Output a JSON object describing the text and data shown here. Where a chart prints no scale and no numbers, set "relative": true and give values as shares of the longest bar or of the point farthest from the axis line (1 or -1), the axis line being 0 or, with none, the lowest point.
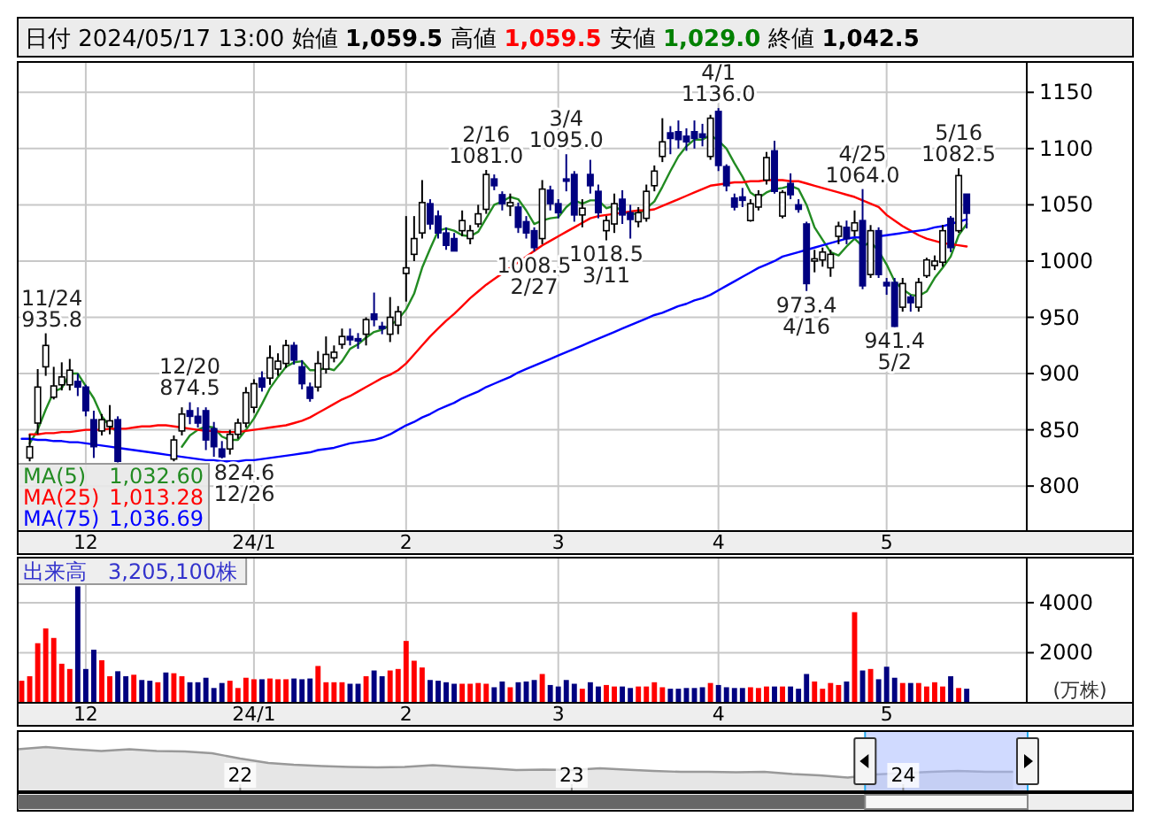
{
  "chart_data": [
    {
      "type": "candlestick",
      "title": "日付 2024/05/17 13:00 始値 1,059.5 高値 1,059.5 安値 1,029.0 終値 1,042.5",
      "categories": [
        null,
        null,
        null,
        null,
        null,
        null,
        null,
        null,
        "12",
        null,
        null,
        null,
        null,
        null,
        null,
        null,
        null,
        null,
        null,
        null,
        null,
        null,
        null,
        null,
        null,
        null,
        null,
        null,
        null,
        "24/1",
        null,
        null,
        null,
        null,
        null,
        null,
        null,
        null,
        null,
        null,
        null,
        null,
        null,
        null,
        null,
        null,
        null,
        null,
        "2",
        null,
        null,
        null,
        null,
        null,
        null,
        null,
        null,
        null,
        null,
        null,
        null,
        null,
        null,
        null,
        null,
        null,
        null,
        "3",
        null,
        null,
        null,
        null,
        null,
        null,
        null,
        null,
        null,
        null,
        null,
        null,
        null,
        null,
        null,
        null,
        null,
        null,
        null,
        "4",
        null,
        null,
        null,
        null,
        null,
        null,
        null,
        null,
        null,
        null,
        null,
        null,
        null,
        null,
        null,
        null,
        null,
        null,
        null,
        null,
        "5",
        null,
        null,
        null,
        null,
        null,
        null,
        null,
        null,
        null,
        null
      ],
      "ohlc": [
        null,
        [
          825,
          846,
          822,
          835
        ],
        [
          856,
          904,
          846,
          888
        ],
        [
          906,
          935.8,
          898,
          925
        ],
        [
          879,
          906,
          877,
          889
        ],
        [
          890,
          910,
          885,
          897
        ],
        [
          890,
          913,
          885,
          903
        ],
        [
          893,
          900,
          880,
          888
        ],
        [
          888,
          890,
          862,
          867
        ],
        [
          859,
          867,
          825,
          835
        ],
        [
          849,
          864,
          845,
          859
        ],
        [
          853,
          872,
          846,
          858
        ],
        [
          859,
          862,
          821,
          822
        ],
        null,
        null,
        null,
        null,
        null,
        null,
        [
          824,
          845,
          822,
          841
        ],
        [
          849,
          870,
          845,
          864
        ],
        [
          867,
          874.5,
          855,
          862
        ],
        [
          862,
          870,
          852,
          856
        ],
        [
          867,
          870,
          832,
          841
        ],
        [
          851,
          857,
          826,
          835
        ],
        [
          833,
          840,
          824.6,
          826
        ],
        [
          833,
          850,
          828,
          846
        ],
        [
          846,
          860,
          842,
          856
        ],
        [
          856,
          888,
          852,
          883
        ],
        [
          870,
          895,
          865,
          891
        ],
        [
          896,
          902,
          884,
          888
        ],
        [
          896,
          925,
          890,
          914
        ],
        [
          904,
          918,
          898,
          911
        ],
        [
          909,
          930,
          905,
          925
        ],
        [
          925,
          928,
          908,
          912
        ],
        [
          906,
          912,
          886,
          891
        ],
        [
          888,
          892,
          875,
          878
        ],
        [
          888,
          920,
          884,
          909
        ],
        [
          904,
          933,
          900,
          917
        ],
        [
          914,
          925,
          910,
          919
        ],
        [
          926,
          940,
          922,
          933
        ],
        [
          933,
          940,
          925,
          930
        ],
        [
          931,
          936,
          922,
          929
        ],
        [
          935,
          950,
          925,
          948
        ],
        [
          953,
          972,
          942,
          948
        ],
        [
          942,
          946,
          935,
          940
        ],
        [
          935,
          968,
          928,
          950
        ],
        [
          943,
          960,
          935,
          955
        ],
        [
          989,
          1040,
          964,
          994
        ],
        [
          1006,
          1040,
          1000,
          1020
        ],
        [
          1025,
          1072,
          1020,
          1052
        ],
        [
          1051,
          1055,
          1028,
          1033
        ],
        [
          1040,
          1045,
          1020,
          1025
        ],
        [
          1025,
          1030,
          1010,
          1014
        ],
        [
          1020,
          1025,
          1009,
          1009
        ],
        [
          1027,
          1045,
          1022,
          1036
        ],
        [
          1020,
          1032,
          1015,
          1027
        ],
        [
          1033,
          1050,
          1030,
          1042
        ],
        [
          1046,
          1081.0,
          1042,
          1077
        ],
        [
          1073,
          1077,
          1063,
          1067
        ],
        [
          1059,
          1062,
          1045,
          1051
        ],
        [
          1049,
          1060,
          1040,
          1052
        ],
        [
          1048,
          1052,
          1025,
          1030
        ],
        [
          1035,
          1040,
          1020,
          1025
        ],
        [
          1027,
          1030,
          1008.5,
          1012
        ],
        [
          1020,
          1072,
          1015,
          1064
        ],
        [
          1063,
          1067,
          1045,
          1051
        ],
        [
          1051,
          1055,
          1038,
          1043
        ],
        [
          1073,
          1095.0,
          1062,
          1071
        ],
        [
          1077,
          1080,
          1035,
          1041
        ],
        [
          1041,
          1055,
          1030,
          1047
        ],
        [
          1077,
          1090,
          1060,
          1067
        ],
        [
          1062,
          1068,
          1038,
          1043
        ],
        [
          1027,
          1040,
          1018.5,
          1036
        ],
        [
          1033,
          1060,
          1025,
          1051
        ],
        [
          1055,
          1063,
          1033,
          1041
        ],
        [
          1043,
          1050,
          1020,
          1037
        ],
        [
          1035,
          1048,
          1030,
          1043
        ],
        [
          1038,
          1068,
          1035,
          1062
        ],
        [
          1067,
          1085,
          1062,
          1080
        ],
        [
          1093,
          1127,
          1088,
          1106
        ],
        [
          1114,
          1120,
          1095,
          1109
        ],
        [
          1115,
          1125,
          1100,
          1108
        ],
        [
          1111,
          1118,
          1098,
          1106
        ],
        [
          1115,
          1125,
          1100,
          1109
        ],
        [
          1113,
          1122,
          1102,
          1110
        ],
        [
          1093,
          1130,
          1090,
          1127
        ],
        [
          1133,
          1136.0,
          1080,
          1085
        ],
        [
          1084,
          1086,
          1062,
          1067
        ],
        [
          1056,
          1060,
          1045,
          1048
        ],
        [
          1057,
          1065,
          1048,
          1054
        ],
        [
          1036,
          1055,
          1035,
          1051
        ],
        [
          1048,
          1063,
          1045,
          1059
        ],
        [
          1072,
          1097,
          1068,
          1092
        ],
        [
          1098,
          1107,
          1060,
          1062
        ],
        [
          1040,
          1063,
          1038,
          1061
        ],
        [
          1069,
          1078,
          1055,
          1059
        ],
        [
          1050,
          1055,
          1043,
          1046
        ],
        [
          1033,
          1035,
          973.4,
          980
        ],
        [
          1000,
          1010,
          990,
          1002
        ],
        [
          1001,
          1012,
          995,
          1008
        ],
        [
          994,
          1010,
          986,
          1006
        ],
        [
          1022,
          1035,
          1015,
          1031
        ],
        [
          1030,
          1036,
          1015,
          1020
        ],
        [
          1027,
          1045,
          1022,
          1034
        ],
        [
          1036,
          1064.0,
          975,
          978
        ],
        [
          988,
          1032,
          985,
          1027
        ],
        [
          1027,
          1030,
          985,
          988
        ],
        [
          981,
          985,
          970,
          978
        ],
        [
          981,
          985,
          941.4,
          942
        ],
        [
          959,
          985,
          955,
          980
        ],
        [
          968,
          970,
          955,
          963
        ],
        [
          959,
          985,
          955,
          981
        ],
        [
          987,
          1003,
          985,
          1001
        ],
        [
          996,
          1005,
          992,
          1000
        ],
        [
          999,
          1032,
          995,
          1027
        ],
        [
          1038,
          1040,
          1008,
          1012
        ],
        [
          1027,
          1082.5,
          1025,
          1076
        ],
        [
          1059.5,
          1059.5,
          1029.0,
          1042.5
        ]
      ],
      "series": [
        {
          "type": "line",
          "name": "MA(5) 1,032.60",
          "color": "#228b22",
          "values": [
            null,
            838,
            850,
            868,
            884,
            887,
            900,
            900,
            889,
            878,
            862,
            853,
            848,
            null,
            null,
            null,
            null,
            null,
            null,
            null,
            835,
            845,
            850,
            853,
            852,
            844,
            841,
            841,
            850,
            860,
            873,
            887,
            897,
            906,
            910,
            911,
            903,
            903,
            905,
            903,
            911,
            922,
            926,
            932,
            937,
            939,
            943,
            948,
            957,
            971,
            994,
            1011,
            1027,
            1029,
            1027,
            1023,
            1022,
            1026,
            1038,
            1050,
            1053,
            1057,
            1055,
            1045,
            1033,
            1036,
            1038,
            1039,
            1048,
            1054,
            1051,
            1054,
            1054,
            1047,
            1049,
            1044,
            1042,
            1042,
            1047,
            1053,
            1066,
            1080,
            1093,
            1102,
            1108,
            1108,
            1112,
            1107,
            1100,
            1087,
            1075,
            1061,
            1056,
            1061,
            1064,
            1065,
            1067,
            1064,
            1050,
            1030,
            1019,
            1008,
            1005,
            1013,
            1020,
            1013,
            1017,
            1009,
            997,
            982,
            975,
            970,
            969,
            973,
            985,
            994,
            1004,
            1023,
            1033
          ]
        },
        {
          "type": "line",
          "name": "MA(25) 1,013.28",
          "color": "#ff0000",
          "values": [
            null,
            846,
            846,
            847,
            847,
            848,
            848,
            849,
            850,
            850,
            850,
            851,
            851,
            851,
            852,
            853,
            853,
            854,
            854,
            853,
            852,
            851,
            850,
            849,
            849,
            848,
            848,
            848,
            849,
            850,
            851,
            852,
            853,
            854,
            856,
            858,
            861,
            865,
            869,
            873,
            877,
            880,
            884,
            888,
            892,
            896,
            899,
            903,
            909,
            917,
            925,
            933,
            940,
            947,
            953,
            960,
            967,
            973,
            979,
            984,
            989,
            994,
            999,
            1004,
            1009,
            1014,
            1018,
            1022,
            1026,
            1030,
            1034,
            1038,
            1040,
            1041,
            1042,
            1043,
            1044,
            1045,
            1045,
            1046,
            1049,
            1052,
            1055,
            1058,
            1061,
            1064,
            1067,
            1068,
            1069,
            1070,
            1070,
            1071,
            1071,
            1072,
            1072,
            1072,
            1071,
            1071,
            1069,
            1067,
            1065,
            1063,
            1061,
            1059,
            1057,
            1054,
            1051,
            1048,
            1041,
            1036,
            1031,
            1027,
            1023,
            1020,
            1018,
            1016,
            1015,
            1014,
            1013
          ]
        },
        {
          "type": "line",
          "name": "MA(75) 1,036.69",
          "color": "#0000ff",
          "values": [
            842,
            842,
            841,
            841,
            840,
            840,
            839,
            839,
            838,
            837,
            836,
            835,
            834,
            833,
            832,
            831,
            830,
            829,
            828,
            827,
            826,
            825,
            824,
            823,
            823,
            822,
            822,
            822,
            823,
            823,
            824,
            825,
            826,
            827,
            828,
            829,
            830,
            832,
            833,
            834,
            836,
            838,
            839,
            840,
            841,
            843,
            846,
            850,
            854,
            857,
            861,
            864,
            868,
            871,
            874,
            878,
            881,
            884,
            888,
            891,
            894,
            897,
            901,
            904,
            907,
            910,
            913,
            916,
            919,
            922,
            925,
            928,
            931,
            934,
            937,
            940,
            943,
            946,
            949,
            952,
            954,
            957,
            960,
            962,
            965,
            967,
            970,
            974,
            978,
            982,
            986,
            990,
            994,
            997,
            1000,
            1004,
            1006,
            1008,
            1010,
            1012,
            1014,
            1016,
            1018,
            1020,
            1021,
            1021,
            null,
            1022,
            1023,
            1024,
            1025,
            1026,
            1027,
            1028,
            1030,
            1031,
            1033,
            1035,
            1037
          ]
        }
      ],
      "ylim": [
        760,
        1177
      ],
      "yticks": [
        800,
        850,
        900,
        950,
        1000,
        1050,
        1100,
        1150
      ],
      "grid": true,
      "legend": "bottom left",
      "annotations": [
        {
          "text": "11/24\n935.8",
          "y": 935.8
        },
        {
          "text": "12/20\n874.5",
          "y": 874.5
        },
        {
          "text": "824.6\n12/26",
          "y": 824.6
        },
        {
          "text": "2/16\n1081.0",
          "y": 1081.0
        },
        {
          "text": "1008.5\n2/27",
          "y": 1008.5
        },
        {
          "text": "3/4\n1095.0",
          "y": 1095.0
        },
        {
          "text": "1018.5\n3/11",
          "y": 1018.5
        },
        {
          "text": "4/1\n1136.0",
          "y": 1136.0
        },
        {
          "text": "973.4\n4/16",
          "y": 973.4
        },
        {
          "text": "4/25\n1064.0",
          "y": 1064.0
        },
        {
          "text": "941.4\n5/2",
          "y": 941.4
        },
        {
          "text": "5/16\n1082.5",
          "y": 1082.5
        }
      ]
    },
    {
      "type": "bar",
      "title": "出来高　3,205,100株",
      "ylabel": "(万株)",
      "categories": [
        null,
        null,
        null,
        null,
        null,
        null,
        null,
        null,
        "12",
        null,
        null,
        null,
        null,
        null,
        null,
        null,
        null,
        null,
        null,
        null,
        null,
        null,
        null,
        null,
        null,
        null,
        null,
        null,
        null,
        "24/1",
        null,
        null,
        null,
        null,
        null,
        null,
        null,
        null,
        null,
        null,
        null,
        null,
        null,
        null,
        null,
        null,
        null,
        null,
        "2",
        null,
        null,
        null,
        null,
        null,
        null,
        null,
        null,
        null,
        null,
        null,
        null,
        null,
        null,
        null,
        null,
        null,
        null,
        "3",
        null,
        null,
        null,
        null,
        null,
        null,
        null,
        null,
        null,
        null,
        null,
        null,
        null,
        null,
        null,
        null,
        null,
        null,
        null,
        "4",
        null,
        null,
        null,
        null,
        null,
        null,
        null,
        null,
        null,
        null,
        null,
        null,
        null,
        null,
        null,
        null,
        null,
        null,
        null,
        null,
        "5",
        null,
        null,
        null,
        null,
        null,
        null,
        null,
        null,
        null,
        null
      ],
      "values": [
        880,
        1060,
        2380,
        2970,
        2590,
        1560,
        1350,
        4650,
        1350,
        2120,
        1700,
        1060,
        1260,
        1060,
        1120,
        910,
        880,
        820,
        1210,
        1180,
        1060,
        820,
        820,
        1000,
        590,
        790,
        880,
        590,
        1000,
        940,
        940,
        970,
        940,
        940,
        970,
        940,
        970,
        1470,
        820,
        820,
        820,
        760,
        760,
        1060,
        1290,
        1060,
        1290,
        1350,
        2470,
        1680,
        1410,
        910,
        880,
        820,
        760,
        760,
        760,
        790,
        760,
        620,
        850,
        620,
        820,
        850,
        910,
        1150,
        710,
        650,
        910,
        760,
        560,
        820,
        650,
        710,
        650,
        650,
        590,
        650,
        650,
        820,
        620,
        560,
        560,
        590,
        590,
        620,
        790,
        710,
        620,
        590,
        590,
        620,
        590,
        650,
        650,
        650,
        650,
        560,
        1150,
        850,
        560,
        790,
        710,
        850,
        3620,
        1290,
        1350,
        940,
        1440,
        1000,
        790,
        790,
        790,
        650,
        820,
        650,
        1060,
        590,
        560
      ],
      "colors": [
        "#ff0000",
        "#ff0000",
        "#ff0000",
        "#ff0000",
        "#ff0000",
        "#ff0000",
        "#ff0000",
        "#000080",
        "#000080",
        "#000080",
        "#ff0000",
        "#ff0000",
        "#000080",
        "#000080",
        "#ff0000",
        "#000080",
        "#000080",
        "#ff0000",
        "#000080",
        "#ff0000",
        "#ff0000",
        "#000080",
        "#000080",
        "#000080",
        "#000080",
        "#000080",
        "#ff0000",
        "#ff0000",
        "#ff0000",
        "#ff0000",
        "#000080",
        "#ff0000",
        "#ff0000",
        "#ff0000",
        "#000080",
        "#000080",
        "#000080",
        "#ff0000",
        "#ff0000",
        "#ff0000",
        "#ff0000",
        "#000080",
        "#000080",
        "#ff0000",
        "#000080",
        "#000080",
        "#ff0000",
        "#ff0000",
        "#ff0000",
        "#ff0000",
        "#ff0000",
        "#000080",
        "#000080",
        "#000080",
        "#000080",
        "#ff0000",
        "#ff0000",
        "#ff0000",
        "#ff0000",
        "#000080",
        "#000080",
        "#ff0000",
        "#000080",
        "#000080",
        "#000080",
        "#ff0000",
        "#000080",
        "#000080",
        "#000080",
        "#000080",
        "#ff0000",
        "#000080",
        "#000080",
        "#ff0000",
        "#ff0000",
        "#000080",
        "#000080",
        "#ff0000",
        "#ff0000",
        "#ff0000",
        "#ff0000",
        "#000080",
        "#000080",
        "#000080",
        "#000080",
        "#000080",
        "#ff0000",
        "#000080",
        "#000080",
        "#000080",
        "#000080",
        "#ff0000",
        "#ff0000",
        "#ff0000",
        "#000080",
        "#ff0000",
        "#000080",
        "#000080",
        "#000080",
        "#ff0000",
        "#ff0000",
        "#ff0000",
        "#ff0000",
        "#000080",
        "#ff0000",
        "#000080",
        "#ff0000",
        "#000080",
        "#000080",
        "#000080",
        "#ff0000",
        "#000080",
        "#ff0000",
        "#ff0000",
        "#ff0000",
        "#ff0000",
        "#000080",
        "#ff0000",
        "#000080"
      ],
      "ylim": [
        0,
        5800
      ],
      "yticks": [
        2000,
        4000
      ],
      "grid": true
    },
    {
      "type": "area",
      "relative": true,
      "color": "#999999",
      "x": [
        "2021-05",
        "2021-06",
        "2021-07",
        "2021-08",
        "2021-09",
        "2021-10",
        "2021-11",
        "2021-12",
        "2022-01",
        "2022-02",
        "2022-03",
        "2022-04",
        "2022-05",
        "2022-06",
        "2022-07",
        "2022-08",
        "2022-09",
        "2022-10",
        "2022-11",
        "2022-12",
        "2023-01",
        "2023-02",
        "2023-03",
        "2023-04",
        "2023-05",
        "2023-06",
        "2023-07",
        "2023-08",
        "2023-09",
        "2023-10",
        "2023-11",
        "2023-12",
        "2024-01",
        "2024-02",
        "2024-03",
        "2024-04",
        "2024-05"
      ],
      "values": [
        0.95,
        1,
        0.95,
        0.91,
        0.95,
        0.91,
        0.9,
        0.86,
        0.74,
        0.64,
        0.6,
        0.57,
        0.55,
        0.54,
        0.55,
        0.59,
        0.55,
        0.52,
        0.48,
        0.49,
        0.48,
        0.52,
        0.49,
        0.46,
        0.44,
        0.44,
        0.43,
        0.44,
        0.39,
        0.36,
        0.31,
        0.38,
        0.41,
        0.44,
        0.46,
        0.44,
        0.44
      ],
      "xlim": [
        "2021-05-01",
        "2024-09-10"
      ],
      "xticks": [
        {
          "value": "2022-01-01",
          "label": "22"
        },
        {
          "value": "2023-01-01",
          "label": "23"
        },
        {
          "value": "2024-01-01",
          "label": "24"
        }
      ],
      "bands": [
        {
          "axis": "x",
          "from": "2023-11-20",
          "to": "2024-05-17",
          "color": "#aabbff"
        }
      ]
    }
  ]
}
